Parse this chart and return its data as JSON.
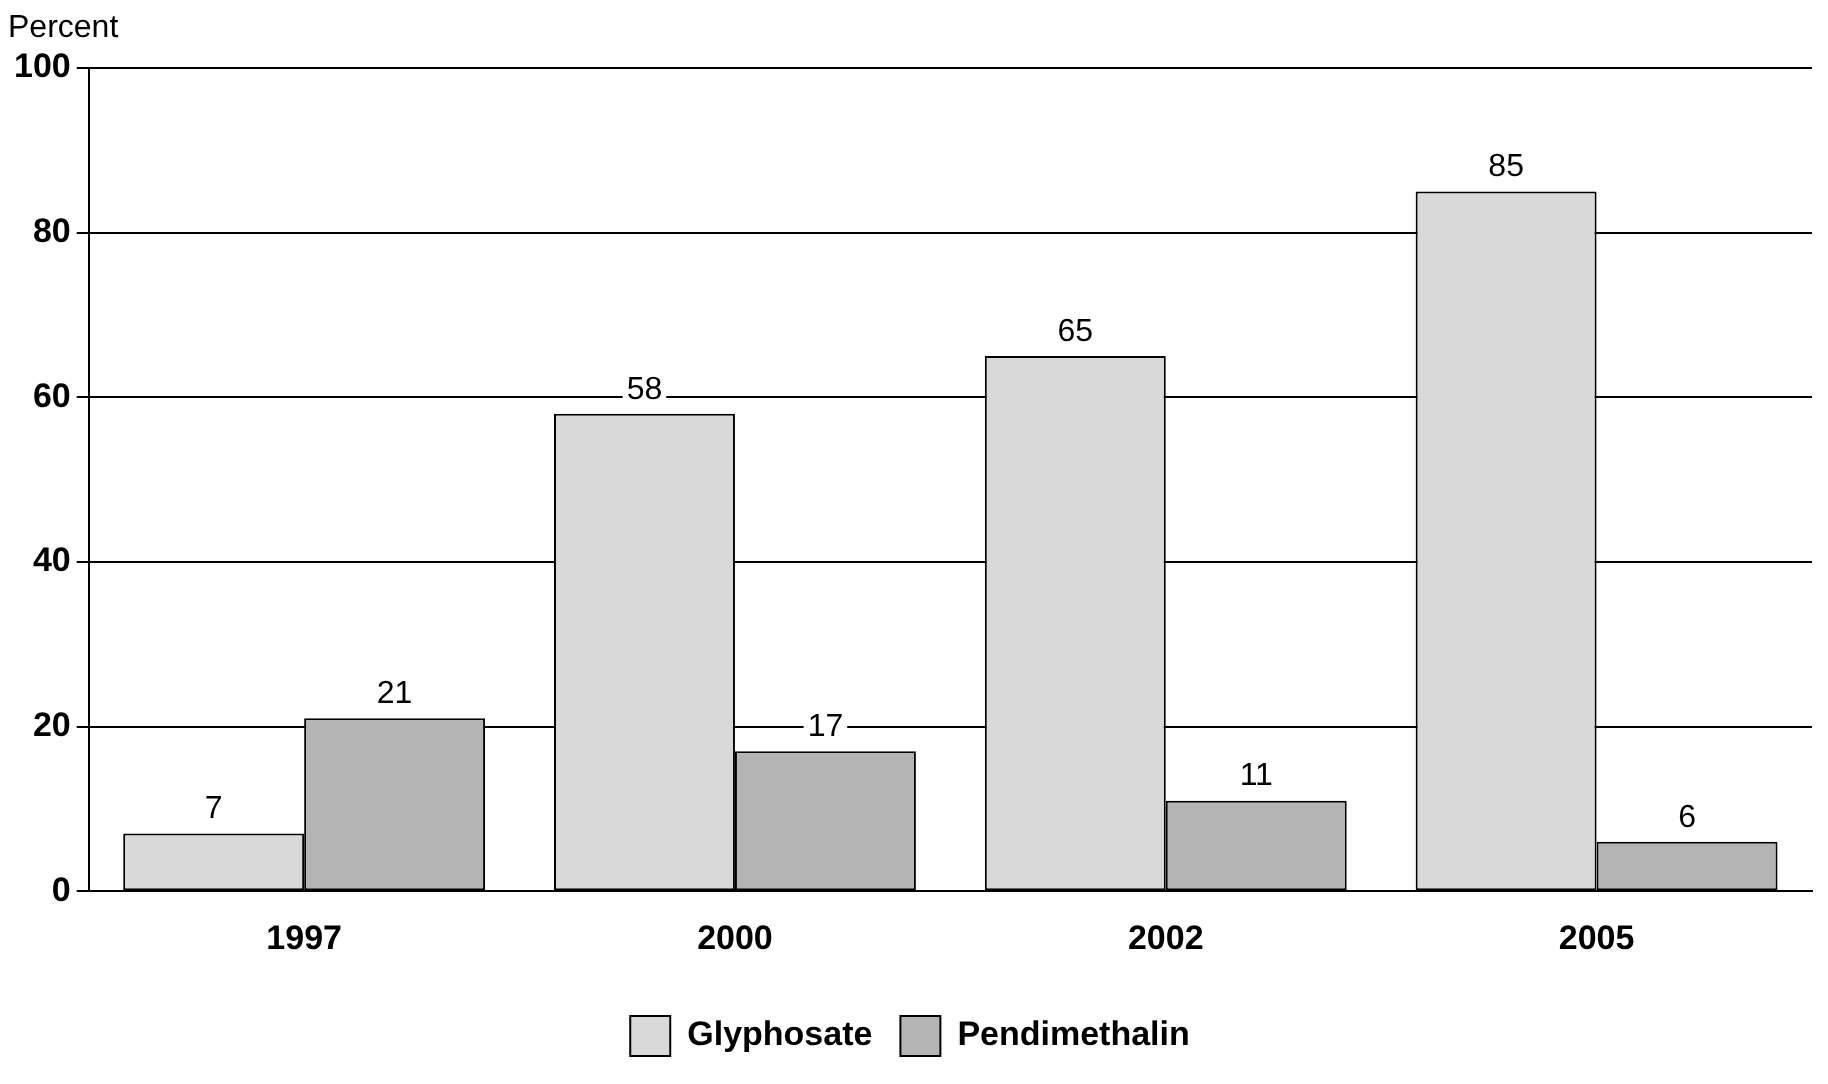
{
  "chart_data": {
    "type": "bar",
    "ylabel": "Percent",
    "categories": [
      "1997",
      "2000",
      "2002",
      "2005"
    ],
    "series": [
      {
        "name": "Glyphosate",
        "color": "#d9d9d9",
        "values": [
          7,
          58,
          65,
          85
        ]
      },
      {
        "name": "Pendimethalin",
        "color": "#b4b4b4",
        "values": [
          21,
          17,
          11,
          6
        ]
      }
    ],
    "ylim": [
      0,
      100
    ],
    "yticks": [
      0,
      20,
      40,
      60,
      80,
      100
    ],
    "grid": "y",
    "legend": "bottom",
    "data_labels": true
  }
}
